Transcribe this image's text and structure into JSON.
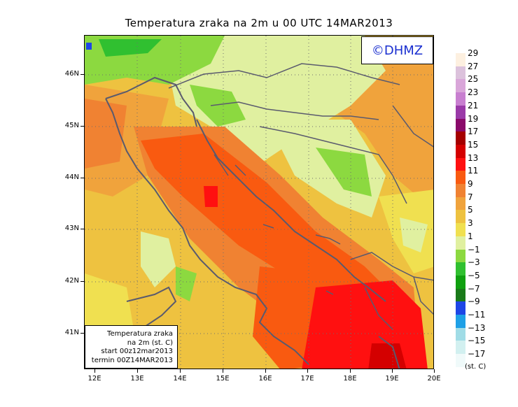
{
  "title": "Temperatura zraka na 2m u 00 UTC 14MAR2013",
  "logo": "©DHMZ",
  "info_box": {
    "line1": "Temperatura zraka",
    "line2": "na 2m (st. C)",
    "line3": "start 00z12mar2013",
    "line4": "termin 00Z14MAR2013"
  },
  "y_axis": {
    "ticks": [
      "46N",
      "45N",
      "44N",
      "43N",
      "42N",
      "41N"
    ]
  },
  "x_axis": {
    "ticks": [
      "12E",
      "13E",
      "14E",
      "15E",
      "16E",
      "17E",
      "18E",
      "19E",
      "20E"
    ]
  },
  "legend": {
    "unit": "(st. C)",
    "entries": [
      {
        "label": "29",
        "color": "#fdf0e0"
      },
      {
        "label": "27",
        "color": "#dcc2dc"
      },
      {
        "label": "25",
        "color": "#d9a6d9"
      },
      {
        "label": "23",
        "color": "#c87fd0"
      },
      {
        "label": "21",
        "color": "#9a3aa8"
      },
      {
        "label": "19",
        "color": "#8a0a6a"
      },
      {
        "label": "17",
        "color": "#a50000"
      },
      {
        "label": "15",
        "color": "#d40000"
      },
      {
        "label": "13",
        "color": "#ff1010"
      },
      {
        "label": "11",
        "color": "#f95a10"
      },
      {
        "label": "9",
        "color": "#f08232"
      },
      {
        "label": "7",
        "color": "#f0a33c"
      },
      {
        "label": "5",
        "color": "#eec240"
      },
      {
        "label": "3",
        "color": "#f0e050"
      },
      {
        "label": "1",
        "color": "#e0f0a0"
      },
      {
        "label": "−1",
        "color": "#8cd940"
      },
      {
        "label": "−3",
        "color": "#30c030"
      },
      {
        "label": "−5",
        "color": "#10a010"
      },
      {
        "label": "−7",
        "color": "#1a7a1a"
      },
      {
        "label": "−9",
        "color": "#1e46e6"
      },
      {
        "label": "−11",
        "color": "#1ea0e6"
      },
      {
        "label": "−13",
        "color": "#a0dce6"
      },
      {
        "label": "−15",
        "color": "#d2f0f0"
      },
      {
        "label": "−17",
        "color": "#f0fafa"
      }
    ]
  }
}
